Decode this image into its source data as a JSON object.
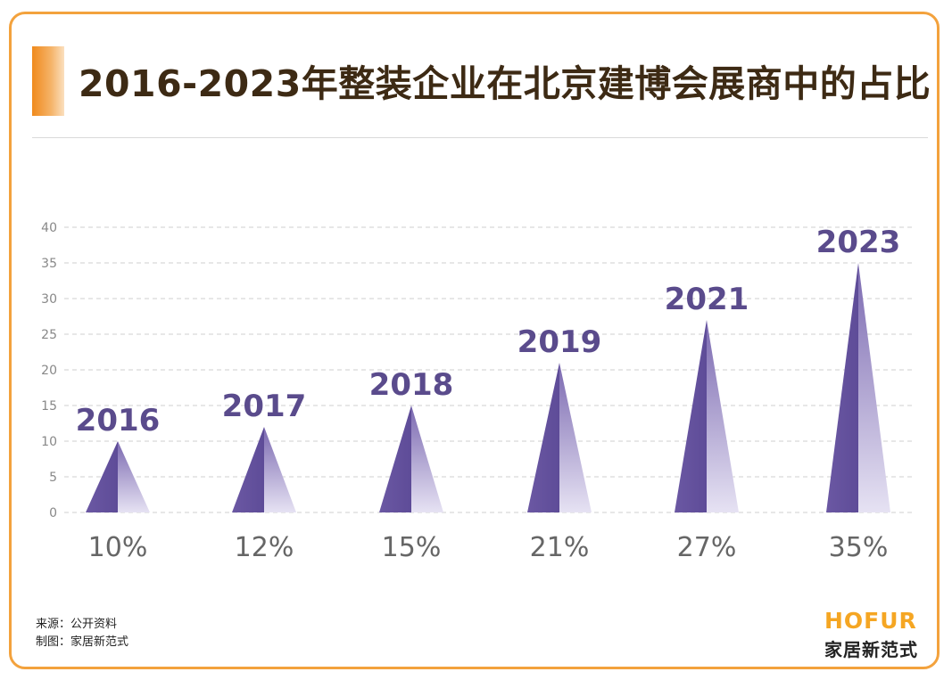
{
  "title": "2016-2023年整装企业在北京建博会展商中的占比",
  "source": {
    "line1": "来源：公开资料",
    "line2": "制图：家居新范式"
  },
  "brand": {
    "name_en": "HOFUR",
    "name_cn": "家居新范式",
    "color": "#f5a623"
  },
  "colors": {
    "accent": "#f3a23d",
    "bar_dark": "#6b58a3",
    "bar_light": "#b4aad2",
    "year_label": "#5a4b8c"
  },
  "chart_data": {
    "type": "bar",
    "shape": "triangle",
    "categories": [
      "2016",
      "2017",
      "2018",
      "2019",
      "2021",
      "2023"
    ],
    "values": [
      10,
      12,
      15,
      21,
      27,
      35
    ],
    "value_labels": [
      "10%",
      "12%",
      "15%",
      "21%",
      "27%",
      "35%"
    ],
    "ylim": [
      0,
      40
    ],
    "yticks": [
      0,
      5,
      10,
      15,
      20,
      25,
      30,
      35,
      40
    ],
    "grid": true
  }
}
